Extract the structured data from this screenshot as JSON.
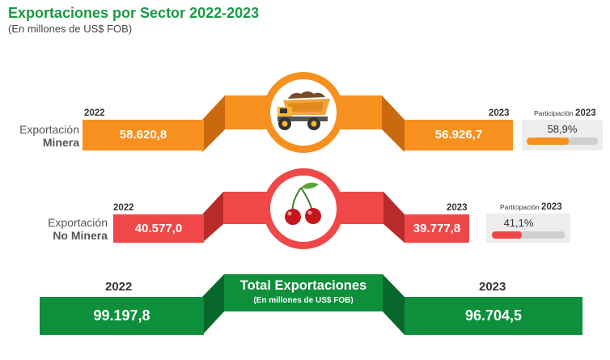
{
  "header": {
    "title": "Exportaciones por Sector 2022-2023",
    "subtitle": "(En millones de US$ FOB)"
  },
  "mining": {
    "label_line1": "Exportación",
    "label_line2": "Minera",
    "year_left": "2022",
    "year_right": "2023",
    "value_2022": "58.620,8",
    "value_2023": "56.926,7",
    "participation_caption": "Participación",
    "participation_year": "2023",
    "participation_value": "58,9%",
    "participation_fraction": 0.589,
    "color": "#f7901e",
    "color_dark": "#c96a0f",
    "icon": "mining-truck-icon"
  },
  "non_mining": {
    "label_line1": "Exportación",
    "label_line2": "No Minera",
    "year_left": "2022",
    "year_right": "2023",
    "value_2022": "40.577,0",
    "value_2023": "39.777,8",
    "participation_caption": "Participación",
    "participation_year": "2023",
    "participation_value": "41,1%",
    "participation_fraction": 0.411,
    "color": "#f04848",
    "color_dark": "#b92b2b",
    "icon": "cherries-icon"
  },
  "total": {
    "title": "Total Exportaciones",
    "subtitle": "(En millones de US$ FOB)",
    "year_left": "2022",
    "year_right": "2023",
    "value_2022": "99.197,8",
    "value_2023": "96.704,5",
    "color": "#0d8f3c",
    "color_dark": "#08682b"
  }
}
